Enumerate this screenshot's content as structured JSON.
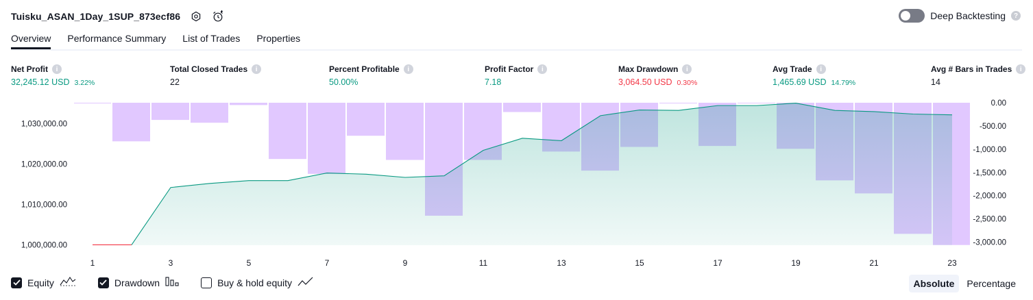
{
  "header": {
    "strategy_name": "Tuisku_ASAN_1Day_1SUP_873ecf86",
    "deep_backtesting_label": "Deep Backtesting",
    "deep_backtesting_enabled": false,
    "help_glyph": "?"
  },
  "tabs": [
    {
      "label": "Overview",
      "active": true
    },
    {
      "label": "Performance Summary",
      "active": false
    },
    {
      "label": "List of Trades",
      "active": false
    },
    {
      "label": "Properties",
      "active": false
    }
  ],
  "metrics": {
    "net_profit": {
      "label": "Net Profit",
      "value": "32,245.12 USD",
      "sub": "3.22%"
    },
    "total_closed_trades": {
      "label": "Total Closed Trades",
      "value": "22"
    },
    "percent_profitable": {
      "label": "Percent Profitable",
      "value": "50.00%"
    },
    "profit_factor": {
      "label": "Profit Factor",
      "value": "7.18"
    },
    "max_drawdown": {
      "label": "Max Drawdown",
      "value": "3,064.50 USD",
      "sub": "0.30%"
    },
    "avg_trade": {
      "label": "Avg Trade",
      "value": "1,465.69 USD",
      "sub": "14.79%"
    },
    "avg_bars": {
      "label": "Avg # Bars in Trades",
      "value": "14"
    },
    "info_glyph": "i"
  },
  "chart_data": {
    "type": "line",
    "x": [
      1,
      2,
      3,
      4,
      5,
      6,
      7,
      8,
      9,
      10,
      11,
      12,
      13,
      14,
      15,
      16,
      17,
      18,
      19,
      20,
      21,
      22,
      23
    ],
    "x_tick_labels": [
      "1",
      "3",
      "5",
      "7",
      "9",
      "11",
      "13",
      "15",
      "17",
      "19",
      "21",
      "23"
    ],
    "equity": [
      1000000,
      1000000,
      1014200,
      1015200,
      1015900,
      1015900,
      1017800,
      1017500,
      1016700,
      1017100,
      1023400,
      1026400,
      1025800,
      1032000,
      1033400,
      1033300,
      1034500,
      1034500,
      1035100,
      1033300,
      1033000,
      1032400,
      1032200
    ],
    "drawdown": [
      0,
      -830,
      -370,
      -430,
      -50,
      -1210,
      -1530,
      -710,
      -1230,
      -2430,
      -1230,
      -200,
      -1050,
      -1460,
      -950,
      0,
      -930,
      0,
      -990,
      -1670,
      -1950,
      -2820,
      -3060
    ],
    "left_axis": {
      "ticks": [
        "1,000,000.00",
        "1,010,000.00",
        "1,020,000.00",
        "1,030,000.00"
      ],
      "range": [
        999900,
        1035200
      ]
    },
    "right_axis": {
      "ticks": [
        "0.00",
        "-500.00",
        "-1,000.00",
        "-1,500.00",
        "-2,000.00",
        "-2,500.00",
        "-3,000.00"
      ],
      "range": [
        0,
        -3064.5
      ]
    },
    "series": [
      {
        "name": "Equity",
        "color": "#089981"
      },
      {
        "name": "Drawdown",
        "color": "#d9b8ff"
      }
    ],
    "grid": false
  },
  "footer": {
    "legend": [
      {
        "label": "Equity",
        "checked": true,
        "icon": "equity-icon"
      },
      {
        "label": "Drawdown",
        "checked": true,
        "icon": "drawdown-bars-icon"
      },
      {
        "label": "Buy & hold equity",
        "checked": false,
        "icon": "buy-hold-line-icon"
      }
    ],
    "mode_absolute": "Absolute",
    "mode_percentage": "Percentage",
    "active_mode": "Absolute"
  },
  "colors": {
    "profit": "#089981",
    "loss": "#f23645",
    "drawdown_fill": "#d9b8ff",
    "equity_line": "#089981"
  }
}
